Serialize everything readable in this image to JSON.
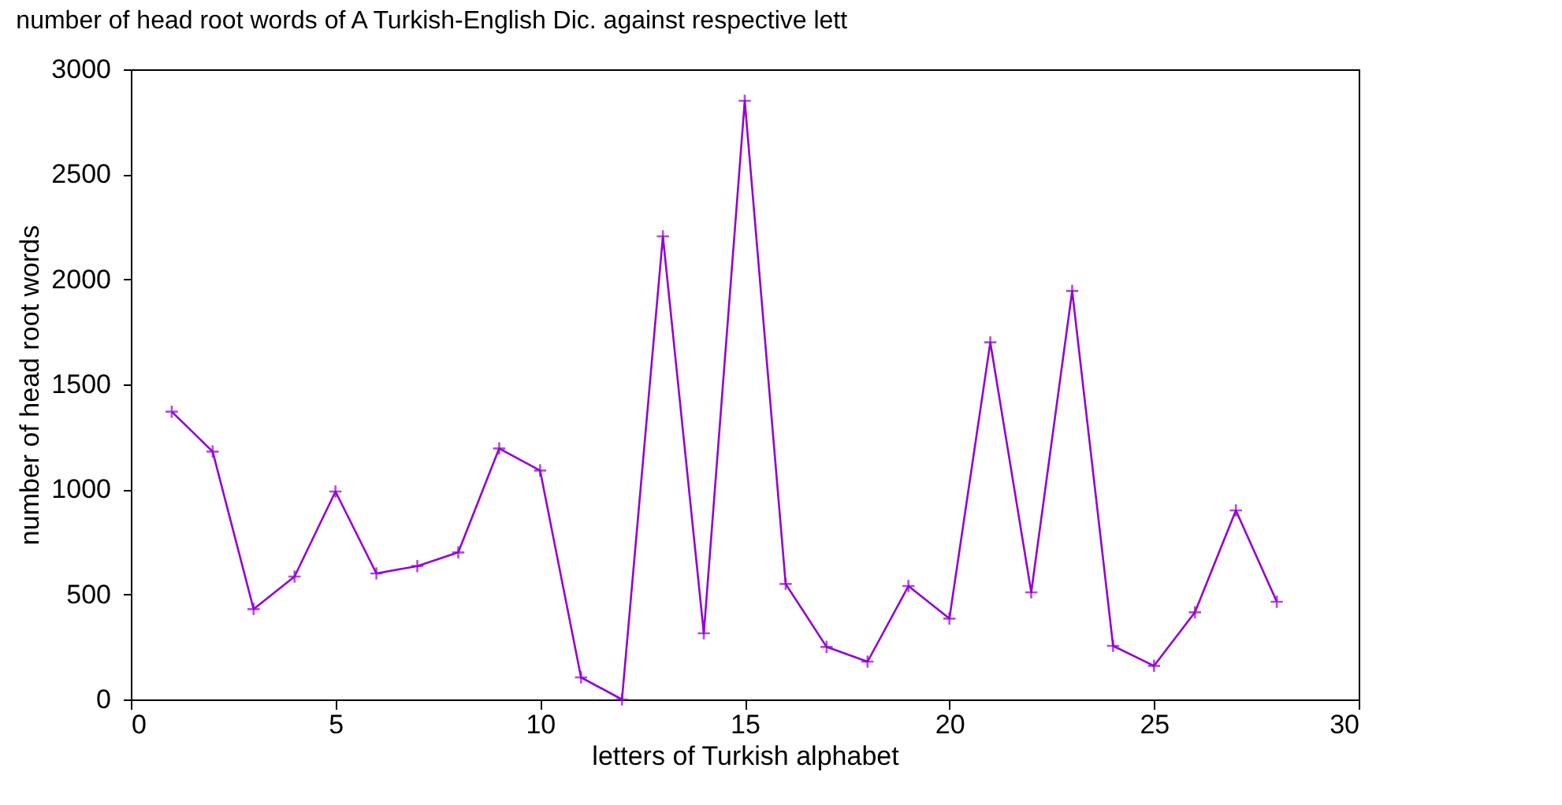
{
  "chart_data": {
    "type": "line",
    "title": "number of head root words of A Turkish-English Dic. against respective lett",
    "xlabel": "letters of Turkish alphabet",
    "ylabel": "number of head root words",
    "x": [
      1,
      2,
      3,
      4,
      5,
      6,
      7,
      8,
      9,
      10,
      11,
      12,
      13,
      14,
      15,
      16,
      17,
      18,
      19,
      20,
      21,
      22,
      23,
      24,
      25,
      26,
      27,
      28
    ],
    "series": [
      {
        "color": "#9400d3",
        "values": [
          1370,
          1180,
          430,
          585,
          990,
          600,
          635,
          700,
          1195,
          1090,
          105,
          0,
          2205,
          315,
          2850,
          550,
          250,
          180,
          540,
          385,
          1700,
          510,
          1945,
          255,
          160,
          415,
          900,
          465
        ]
      }
    ],
    "xlim": [
      0,
      30
    ],
    "xticks": [
      0,
      5,
      10,
      15,
      20,
      25,
      30
    ],
    "ylim": [
      0,
      3000
    ],
    "yticks": [
      0,
      500,
      1000,
      1500,
      2000,
      2500,
      3000
    ],
    "grid": false,
    "marker": "cross",
    "line_style": "solid"
  }
}
